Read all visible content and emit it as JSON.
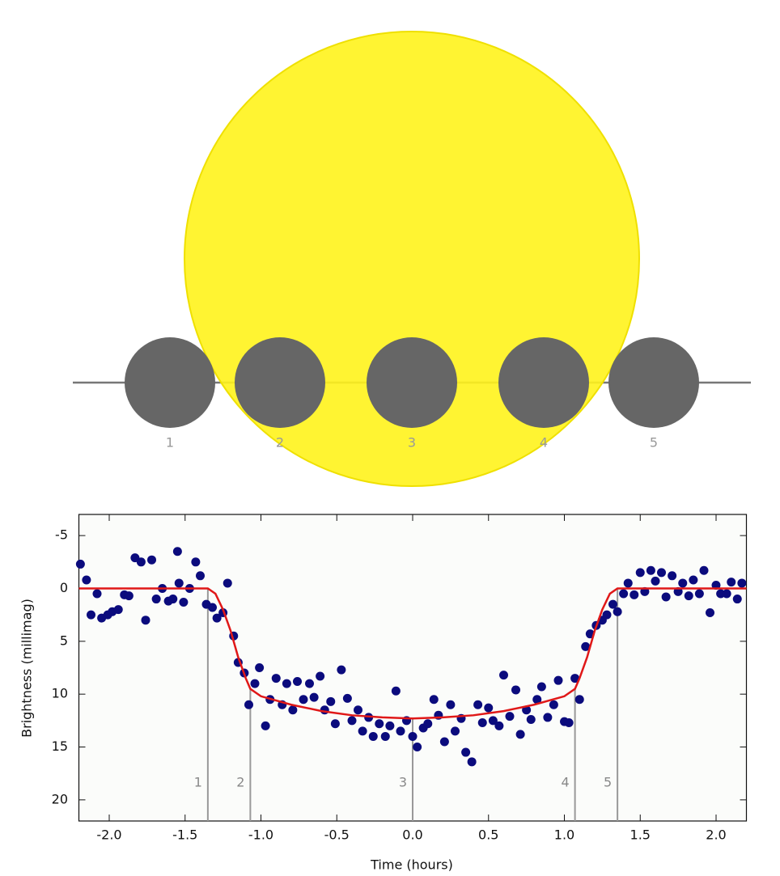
{
  "diagram": {
    "labels": [
      "1",
      "2",
      "3",
      "4",
      "5"
    ]
  },
  "chart_data": {
    "type": "scatter",
    "xlabel": "Time (hours)",
    "ylabel": "Brightness (millimag)",
    "xlim": [
      -2.2,
      2.2
    ],
    "ylim": [
      22,
      -7
    ],
    "xticks": [
      {
        "value": -2,
        "label": "-2.0"
      },
      -1.5,
      {
        "value": -1,
        "label": "-1.0"
      },
      -0.5,
      {
        "value": 0,
        "label": "0.0"
      },
      0.5,
      {
        "value": 1,
        "label": "1.0"
      },
      1.5,
      {
        "value": 2,
        "label": "2.0"
      }
    ],
    "yticks": [
      -5,
      0,
      5,
      10,
      15,
      20
    ],
    "contacts": {
      "x": [
        -1.35,
        -1.07,
        0,
        1.07,
        1.35
      ],
      "labels": [
        "1",
        "2",
        "3",
        "4",
        "5"
      ]
    },
    "series": [
      {
        "type": "scatter",
        "color": "#0b0b7d",
        "x": [
          -2.19,
          -2.15,
          -2.12,
          -2.08,
          -2.05,
          -2.01,
          -1.98,
          -1.94,
          -1.9,
          -1.87,
          -1.83,
          -1.79,
          -1.76,
          -1.72,
          -1.69,
          -1.65,
          -1.61,
          -1.58,
          -1.55,
          -1.54,
          -1.51,
          -1.47,
          -1.43,
          -1.4,
          -1.36,
          -1.32,
          -1.29,
          -1.25,
          -1.22,
          -1.18,
          -1.15,
          -1.11,
          -1.08,
          -1.04,
          -1.01,
          -0.97,
          -0.94,
          -0.9,
          -0.86,
          -0.83,
          -0.79,
          -0.76,
          -0.72,
          -0.68,
          -0.65,
          -0.61,
          -0.58,
          -0.54,
          -0.51,
          -0.47,
          -0.43,
          -0.4,
          -0.36,
          -0.33,
          -0.29,
          -0.26,
          -0.22,
          -0.18,
          -0.15,
          -0.11,
          -0.08,
          -0.04,
          0,
          0.03,
          0.07,
          0.1,
          0.14,
          0.17,
          0.21,
          0.25,
          0.28,
          0.32,
          0.35,
          0.39,
          0.43,
          0.46,
          0.5,
          0.53,
          0.57,
          0.6,
          0.64,
          0.68,
          0.71,
          0.75,
          0.78,
          0.82,
          0.85,
          0.89,
          0.93,
          0.96,
          1,
          1.03,
          1.07,
          1.1,
          1.14,
          1.17,
          1.21,
          1.25,
          1.28,
          1.32,
          1.35,
          1.39,
          1.42,
          1.46,
          1.5,
          1.53,
          1.57,
          1.6,
          1.64,
          1.67,
          1.71,
          1.75,
          1.78,
          1.82,
          1.85,
          1.89,
          1.92,
          1.96,
          2,
          2.03,
          2.07,
          2.1,
          2.14,
          2.17
        ],
        "values": [
          -2.3,
          -0.8,
          2.5,
          0.5,
          2.8,
          2.5,
          2.2,
          2,
          0.6,
          0.7,
          -2.9,
          -2.5,
          3,
          -2.7,
          1,
          0,
          1.2,
          1,
          -3.5,
          -0.5,
          1.3,
          0,
          -2.5,
          -1.2,
          1.5,
          1.8,
          2.8,
          2.3,
          -0.5,
          4.5,
          7,
          8,
          11,
          9,
          7.5,
          13,
          10.5,
          8.5,
          11,
          9,
          11.5,
          8.8,
          10.5,
          9,
          10.3,
          8.3,
          11.5,
          10.7,
          12.8,
          7.7,
          10.4,
          12.5,
          11.5,
          13.5,
          12.2,
          14,
          12.8,
          14,
          13,
          9.7,
          13.5,
          12.5,
          14,
          15,
          13.2,
          12.8,
          10.5,
          12,
          14.5,
          11,
          13.5,
          12.3,
          15.5,
          16.4,
          11,
          12.7,
          11.3,
          12.5,
          13,
          8.2,
          12.1,
          9.6,
          13.8,
          11.5,
          12.4,
          10.5,
          9.3,
          12.2,
          11,
          8.7,
          12.6,
          12.7,
          8.5,
          10.5,
          5.5,
          4.3,
          3.5,
          3,
          2.5,
          1.5,
          2.2,
          0.5,
          -0.5,
          0.6,
          -1.5,
          0.3,
          -1.7,
          -0.7,
          -1.5,
          0.8,
          -1.2,
          0.3,
          -0.5,
          0.7,
          -0.8,
          0.5,
          -1.7,
          2.3,
          -0.3,
          0.5,
          0.5,
          -0.6,
          1,
          -0.5
        ]
      },
      {
        "type": "line",
        "color": "#e01818",
        "x": [
          -2.2,
          -1.35,
          -1.3,
          -1.25,
          -1.2,
          -1.15,
          -1.1,
          -1.07,
          -1,
          -0.8,
          -0.6,
          -0.4,
          -0.2,
          0,
          0.2,
          0.4,
          0.6,
          0.8,
          1,
          1.07,
          1.1,
          1.15,
          1.2,
          1.25,
          1.3,
          1.35,
          2.2
        ],
        "values": [
          0,
          0,
          0.5,
          2,
          4,
          6.5,
          8.5,
          9.5,
          10.2,
          11,
          11.6,
          12,
          12.2,
          12.3,
          12.2,
          12,
          11.6,
          11,
          10.2,
          9.5,
          8.5,
          6.5,
          4,
          2,
          0.5,
          0,
          0
        ]
      }
    ]
  }
}
